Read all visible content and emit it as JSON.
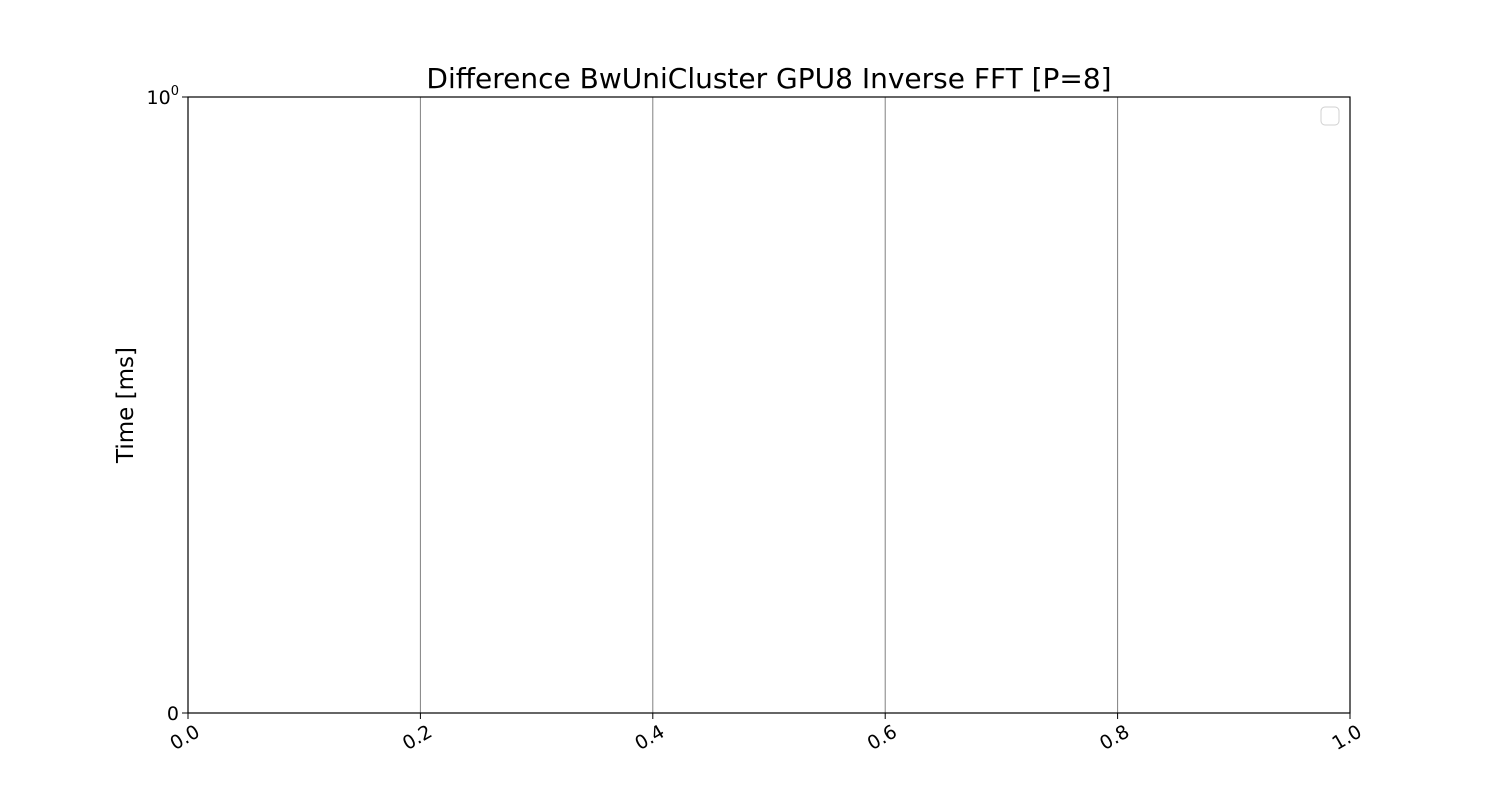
{
  "chart_data": {
    "type": "line",
    "title": "Difference BwUniCluster GPU8 Inverse FFT [P=8]",
    "xlabel": "",
    "ylabel": "Time [ms]",
    "xlim": [
      0.0,
      1.0
    ],
    "ylim": [
      0,
      1
    ],
    "yscale": "symlog",
    "x_ticks": [
      {
        "value": 0.0,
        "label": "0.0"
      },
      {
        "value": 0.2,
        "label": "0.2"
      },
      {
        "value": 0.4,
        "label": "0.4"
      },
      {
        "value": 0.6,
        "label": "0.6"
      },
      {
        "value": 0.8,
        "label": "0.8"
      },
      {
        "value": 1.0,
        "label": "1.0"
      }
    ],
    "y_ticks": [
      {
        "value": 0,
        "label": "0"
      },
      {
        "value": 1,
        "label": "10",
        "exponent": "0"
      }
    ],
    "grid": {
      "x": true,
      "y": false,
      "color": "#808080"
    },
    "legend": {
      "placement": "upper right",
      "entries": []
    },
    "series": []
  }
}
